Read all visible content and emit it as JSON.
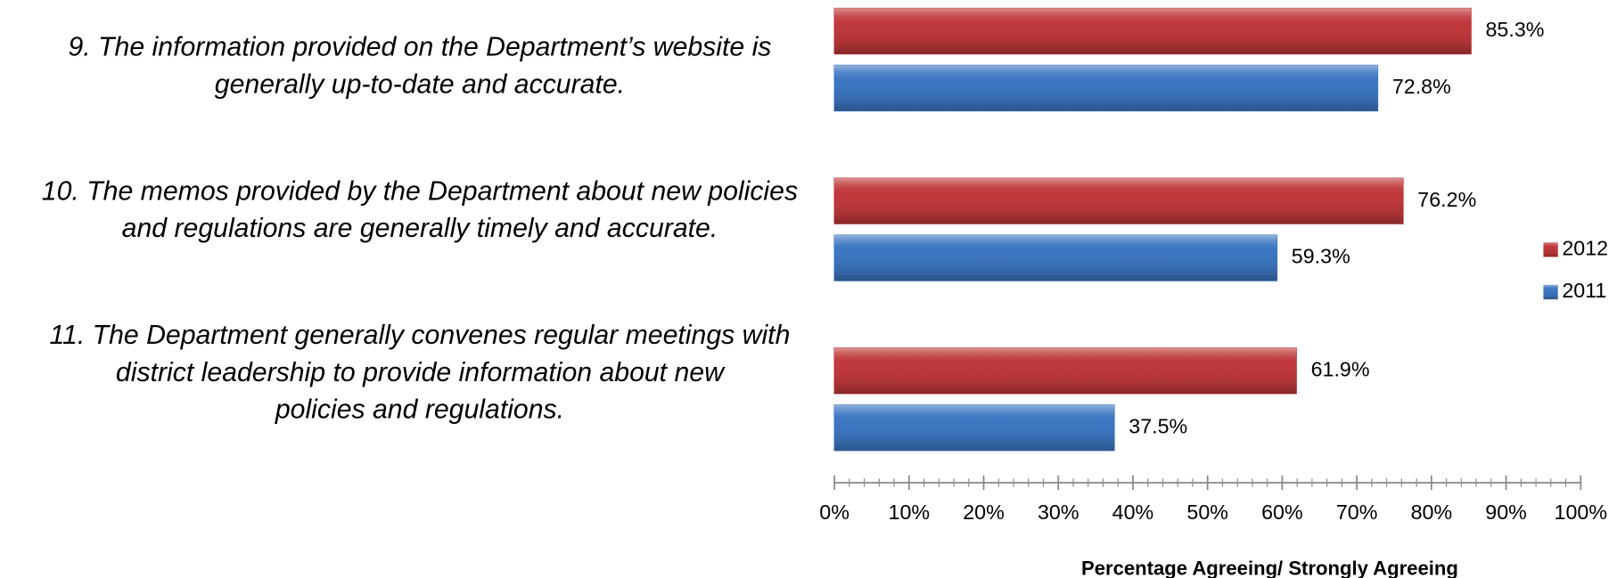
{
  "chart_data": {
    "type": "hbar",
    "categories": [
      [
        "9. The information provided on the Department’s website is",
        "generally up-to-date and accurate."
      ],
      [
        "10. The memos provided by the Department about new policies",
        "and regulations are generally timely and accurate."
      ],
      [
        "11. The Department generally convenes regular meetings with",
        "district leadership to provide information about new",
        "policies and regulations."
      ]
    ],
    "series": [
      {
        "name": "2012",
        "color": "#c0393b",
        "values": [
          85.3,
          76.2,
          61.9
        ],
        "value_labels": [
          "85.3%",
          "76.2%",
          "61.9%"
        ]
      },
      {
        "name": "2011",
        "color": "#3d77c2",
        "values": [
          72.8,
          59.3,
          37.5
        ],
        "value_labels": [
          "72.8%",
          "59.3%",
          "37.5%"
        ]
      }
    ],
    "xlim": [
      0,
      100
    ],
    "xticks": [
      {
        "value": 0,
        "label": "0%"
      },
      {
        "value": 10,
        "label": "10%"
      },
      {
        "value": 20,
        "label": "20%"
      },
      {
        "value": 30,
        "label": "30%"
      },
      {
        "value": 40,
        "label": "40%"
      },
      {
        "value": 50,
        "label": "50%"
      },
      {
        "value": 60,
        "label": "60%"
      },
      {
        "value": 70,
        "label": "70%"
      },
      {
        "value": 80,
        "label": "80%"
      },
      {
        "value": 90,
        "label": "90%"
      },
      {
        "value": 100,
        "label": "100%"
      }
    ],
    "xlabel": "Percentage Agreeing/ Strongly Agreeing",
    "legend": "right"
  }
}
